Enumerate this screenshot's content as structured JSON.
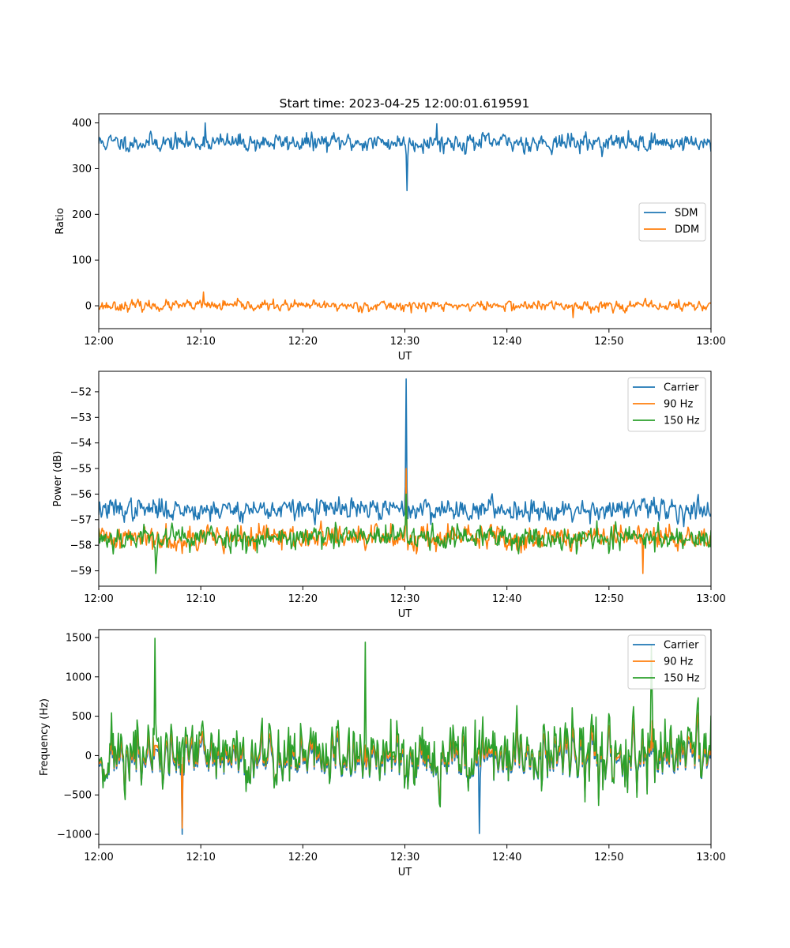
{
  "figure": {
    "title": "Start time: 2023-04-25 12:00:01.619591"
  },
  "colors": {
    "c0": "#1f77b4",
    "c1": "#ff7f0e",
    "c2": "#2ca02c"
  },
  "chart_data": [
    {
      "type": "line",
      "title": "Start time: 2023-04-25 12:00:01.619591",
      "xlabel": "UT",
      "ylabel": "Ratio",
      "x_tick_labels": [
        "12:00",
        "12:10",
        "12:20",
        "12:30",
        "12:40",
        "12:50",
        "13:00"
      ],
      "xlim_minutes": [
        0,
        60
      ],
      "ylim": [
        -50,
        420
      ],
      "y_ticks": [
        0,
        100,
        200,
        300,
        400
      ],
      "y_tick_labels": [
        "0",
        "100",
        "200",
        "300",
        "400"
      ],
      "legend_position": "center-right",
      "series": [
        {
          "name": "SDM",
          "color": "#1f77b4",
          "base": 357,
          "noise": 14,
          "seed": 11,
          "events": [
            {
              "minute": 30.2,
              "value": 252
            },
            {
              "minute": 10.4,
              "value": 400
            },
            {
              "minute": 33.1,
              "value": 398
            }
          ]
        },
        {
          "name": "DDM",
          "color": "#ff7f0e",
          "base": 0,
          "noise": 8,
          "seed": 23,
          "events": [
            {
              "minute": 10.3,
              "value": 30
            },
            {
              "minute": 46.5,
              "value": -26
            }
          ]
        }
      ]
    },
    {
      "type": "line",
      "xlabel": "UT",
      "ylabel": "Power (dB)",
      "x_tick_labels": [
        "12:00",
        "12:10",
        "12:20",
        "12:30",
        "12:40",
        "12:50",
        "13:00"
      ],
      "xlim_minutes": [
        0,
        60
      ],
      "ylim": [
        -59.6,
        -51.2
      ],
      "y_ticks": [
        -59,
        -58,
        -57,
        -56,
        -55,
        -54,
        -53,
        -52
      ],
      "y_tick_labels": [
        "−59",
        "−58",
        "−57",
        "−56",
        "−55",
        "−54",
        "−53",
        "−52"
      ],
      "legend_position": "top-right",
      "series": [
        {
          "name": "Carrier",
          "color": "#1f77b4",
          "base": -56.6,
          "noise": 0.3,
          "seed": 37,
          "events": [
            {
              "minute": 30.15,
              "value": -51.5
            }
          ]
        },
        {
          "name": "90 Hz",
          "color": "#ff7f0e",
          "base": -57.7,
          "noise": 0.35,
          "seed": 41,
          "events": [
            {
              "minute": 30.15,
              "value": -55.0
            },
            {
              "minute": 53.3,
              "value": -59.1
            }
          ]
        },
        {
          "name": "150 Hz",
          "color": "#2ca02c",
          "base": -57.7,
          "noise": 0.35,
          "seed": 53,
          "events": [
            {
              "minute": 30.15,
              "value": -56.0
            },
            {
              "minute": 5.6,
              "value": -59.1
            }
          ]
        }
      ]
    },
    {
      "type": "line",
      "xlabel": "UT",
      "ylabel": "Frequency (Hz)",
      "x_tick_labels": [
        "12:00",
        "12:10",
        "12:20",
        "12:30",
        "12:40",
        "12:50",
        "13:00"
      ],
      "xlim_minutes": [
        0,
        60
      ],
      "ylim": [
        -1130,
        1600
      ],
      "y_ticks": [
        -1000,
        -500,
        0,
        500,
        1000,
        1500
      ],
      "y_tick_labels": [
        "−1000",
        "−500",
        "0",
        "500",
        "1000",
        "1500"
      ],
      "legend_position": "top-right",
      "series": [
        {
          "name": "Carrier",
          "color": "#1f77b4",
          "base": 0,
          "noise": 320,
          "seed": 71,
          "offset": -60,
          "scale": 0.75,
          "events": [
            {
              "minute": 8.2,
              "value": -1000
            },
            {
              "minute": 37.3,
              "value": -990
            }
          ]
        },
        {
          "name": "90 Hz",
          "color": "#ff7f0e",
          "base": 0,
          "noise": 320,
          "seed": 71,
          "offset": -20,
          "scale": 0.8,
          "events": [
            {
              "minute": 8.2,
              "value": -920
            }
          ]
        },
        {
          "name": "150 Hz",
          "color": "#2ca02c",
          "base": 0,
          "noise": 320,
          "seed": 71,
          "offset": 30,
          "scale": 1.0,
          "events": [
            {
              "minute": 5.5,
              "value": 1490
            },
            {
              "minute": 26.1,
              "value": 1440
            },
            {
              "minute": 54.2,
              "value": 1400
            }
          ]
        }
      ]
    }
  ]
}
